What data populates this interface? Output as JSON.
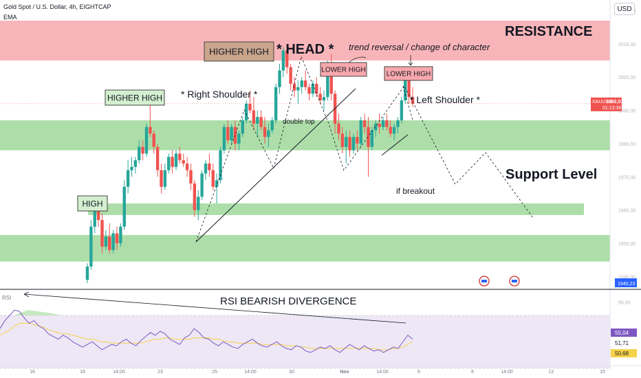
{
  "header": {
    "symbol_line": "Gold Spot / U.S. Dollar, 4h, EIGHTCAP",
    "indicator": "EMA",
    "currency_button": "USD"
  },
  "colors": {
    "bull": "#26a69a",
    "bear": "#ef5350",
    "resistance_zone": "#f7a8ad",
    "support_zone": "#9fd89a",
    "rsi_line": "#7e57c2",
    "rsi_ma": "#f5d34a",
    "rsi_band": "#ede7f6"
  },
  "chart_data": [
    {
      "type": "candlestick",
      "title": "Gold Spot / U.S. Dollar, 4h, EIGHTCAP",
      "price_axis_ticks": [
        "2020,00",
        "2010,00",
        "2000,00",
        "1990,00",
        "1980,00",
        "1970,00",
        "1960,00",
        "1950,00",
        "1940,00"
      ],
      "time_axis_ticks": [
        "16",
        "18",
        "14:00",
        "23",
        "25",
        "14:00",
        "30",
        "Nov",
        "14:00",
        "6",
        "8",
        "14:00",
        "13",
        "15"
      ],
      "ylim": [
        1938,
        2024
      ],
      "current_price": {
        "symbol": "XAUUSD",
        "value": "1992,01",
        "countdown": "01:13:36"
      },
      "price_marker_bottom": "1940,23",
      "zones": [
        {
          "name": "resistance",
          "from": 2005,
          "to": 2017
        },
        {
          "name": "support-1",
          "from": 1978,
          "to": 1987
        },
        {
          "name": "support-2",
          "from": 1958.5,
          "to": 1962
        },
        {
          "name": "support-3",
          "from": 1944.5,
          "to": 1952.5
        }
      ],
      "annotations": {
        "resistance": "RESISTANCE",
        "support_level": "Support Level",
        "head": "* HEAD *",
        "higher_high_top": "HIGHER HIGH",
        "higher_high_left": "HIGHER HIGH",
        "high": "HIGH",
        "lower_high_1": "LOWER HIGH",
        "lower_high_2": "LOWER HIGH",
        "right_shoulder": "* Right Shoulder *",
        "left_shoulder": "* Left Shoulder *",
        "trend_reversal": "trend reversal / change of character",
        "double_top": "double top",
        "if_breakout": "if breakout"
      },
      "candles": [
        [
          1939.0,
          1944.0,
          1938.0,
          1943.0
        ],
        [
          1943.0,
          1957.0,
          1942.0,
          1955.0
        ],
        [
          1955.0,
          1963.0,
          1953.0,
          1961.0
        ],
        [
          1961.0,
          1962.0,
          1955.0,
          1957.0
        ],
        [
          1957.0,
          1959.0,
          1947.0,
          1949.0
        ],
        [
          1949.0,
          1954.0,
          1948.0,
          1952.0
        ],
        [
          1952.0,
          1956.0,
          1947.0,
          1948.0
        ],
        [
          1948.0,
          1954.0,
          1947.0,
          1953.0
        ],
        [
          1953.0,
          1955.0,
          1948.0,
          1950.0
        ],
        [
          1950.0,
          1956.0,
          1949.0,
          1955.0
        ],
        [
          1955.0,
          1969.0,
          1954.0,
          1967.0
        ],
        [
          1967.0,
          1975.0,
          1965.0,
          1972.0
        ],
        [
          1972.0,
          1976.0,
          1970.0,
          1973.0
        ],
        [
          1973.0,
          1976.0,
          1971.0,
          1975.0
        ],
        [
          1975.0,
          1981.0,
          1974.0,
          1979.0
        ],
        [
          1979.0,
          1981.0,
          1975.0,
          1977.0
        ],
        [
          1977.0,
          1986.0,
          1976.0,
          1985.0
        ],
        [
          1985.0,
          1993.0,
          1982.0,
          1983.0
        ],
        [
          1983.0,
          1984.0,
          1977.0,
          1979.0
        ],
        [
          1979.0,
          1980.0,
          1970.0,
          1972.0
        ],
        [
          1972.0,
          1974.0,
          1965.0,
          1967.0
        ],
        [
          1967.0,
          1974.0,
          1966.0,
          1972.0
        ],
        [
          1972.0,
          1977.0,
          1971.0,
          1976.0
        ],
        [
          1976.0,
          1978.0,
          1971.0,
          1973.0
        ],
        [
          1973.0,
          1978.0,
          1972.0,
          1977.0
        ],
        [
          1977.0,
          1979.0,
          1974.0,
          1975.0
        ],
        [
          1975.0,
          1977.0,
          1973.0,
          1974.0
        ],
        [
          1974.0,
          1976.0,
          1970.0,
          1972.0
        ],
        [
          1972.0,
          1974.0,
          1966.0,
          1968.0
        ],
        [
          1968.0,
          1969.0,
          1958.0,
          1960.0
        ],
        [
          1960.0,
          1966.0,
          1957.0,
          1964.0
        ],
        [
          1964.0,
          1972.0,
          1963.0,
          1971.0
        ],
        [
          1971.0,
          1975.0,
          1969.0,
          1974.0
        ],
        [
          1974.0,
          1977.0,
          1970.0,
          1972.0
        ],
        [
          1972.0,
          1974.0,
          1966.0,
          1967.0
        ],
        [
          1967.0,
          1971.0,
          1962.0,
          1969.0
        ],
        [
          1969.0,
          1979.0,
          1968.0,
          1978.0
        ],
        [
          1978.0,
          1986.0,
          1977.0,
          1985.0
        ],
        [
          1985.0,
          1987.0,
          1980.0,
          1981.0
        ],
        [
          1981.0,
          1986.0,
          1980.0,
          1985.0
        ],
        [
          1985.0,
          1987.0,
          1978.0,
          1980.0
        ],
        [
          1980.0,
          1984.0,
          1978.0,
          1983.0
        ],
        [
          1983.0,
          1988.0,
          1982.0,
          1987.0
        ],
        [
          1987.0,
          1993.0,
          1986.0,
          1992.0
        ],
        [
          1992.0,
          1996.0,
          1989.0,
          1990.0
        ],
        [
          1990.0,
          1994.0,
          1984.0,
          1986.0
        ],
        [
          1986.0,
          1990.0,
          1982.0,
          1988.0
        ],
        [
          1988.0,
          1990.0,
          1984.0,
          1985.0
        ],
        [
          1985.0,
          1988.0,
          1980.0,
          1982.0
        ],
        [
          1982.0,
          1986.0,
          1979.0,
          1984.0
        ],
        [
          1984.0,
          1988.0,
          1983.0,
          1987.0
        ],
        [
          1987.0,
          1998.0,
          1986.0,
          1997.0
        ],
        [
          1997.0,
          2004.0,
          1995.0,
          2002.0
        ],
        [
          2002.0,
          2009.0,
          2000.0,
          2008.0
        ],
        [
          2008.0,
          2010.0,
          2001.0,
          2003.0
        ],
        [
          2003.0,
          2004.0,
          1996.0,
          1998.0
        ],
        [
          1998.0,
          2000.0,
          1994.0,
          1996.0
        ],
        [
          1996.0,
          1999.0,
          1992.0,
          1997.0
        ],
        [
          1997.0,
          2000.0,
          1995.0,
          1999.0
        ],
        [
          1999.0,
          2002.0,
          1996.0,
          1997.0
        ],
        [
          1997.0,
          1998.0,
          1993.0,
          1995.0
        ],
        [
          1995.0,
          1999.0,
          1994.0,
          1998.0
        ],
        [
          1998.0,
          2000.0,
          1994.0,
          1995.0
        ],
        [
          1995.0,
          1997.0,
          1992.0,
          1993.0
        ],
        [
          1993.0,
          1996.0,
          1990.0,
          1994.0
        ],
        [
          1994.0,
          2005.0,
          1993.0,
          2004.0
        ],
        [
          2004.0,
          2007.0,
          1993.0,
          1995.0
        ],
        [
          1995.0,
          1996.0,
          1983.0,
          1986.0
        ],
        [
          1986.0,
          1989.0,
          1981.0,
          1983.0
        ],
        [
          1983.0,
          1985.0,
          1977.0,
          1979.0
        ],
        [
          1979.0,
          1984.0,
          1974.0,
          1982.0
        ],
        [
          1982.0,
          1984.0,
          1976.0,
          1978.0
        ],
        [
          1978.0,
          1983.0,
          1977.0,
          1982.0
        ],
        [
          1982.0,
          1984.0,
          1978.0,
          1980.0
        ],
        [
          1980.0,
          1988.0,
          1979.0,
          1987.0
        ],
        [
          1987.0,
          1989.0,
          1983.0,
          1985.0
        ],
        [
          1985.0,
          1988.0,
          1970.0,
          1979.0
        ],
        [
          1979.0,
          1985.0,
          1978.0,
          1984.0
        ],
        [
          1984.0,
          1987.0,
          1982.0,
          1986.0
        ],
        [
          1986.0,
          1989.0,
          1983.0,
          1985.0
        ],
        [
          1985.0,
          1988.0,
          1984.0,
          1987.0
        ],
        [
          1987.0,
          1989.0,
          1984.0,
          1985.0
        ],
        [
          1985.0,
          1987.0,
          1982.0,
          1983.0
        ],
        [
          1983.0,
          1986.0,
          1981.0,
          1985.0
        ],
        [
          1985.0,
          1988.0,
          1983.0,
          1987.0
        ],
        [
          1987.0,
          1994.0,
          1986.0,
          1993.0
        ],
        [
          1993.0,
          2002.0,
          1992.0,
          2001.0
        ],
        [
          1999.0,
          2000.0,
          1992.0,
          1994.0
        ],
        [
          1994.0,
          1997.0,
          1991.0,
          1992.0
        ]
      ]
    },
    {
      "type": "line",
      "title": "RSI",
      "annotation": "RSI BEARISH DIVERGENCE",
      "axis_ticks": [
        "80,00",
        "55,04",
        "51,71",
        "50,68"
      ],
      "ylim": [
        32,
        85
      ],
      "band": [
        30,
        70
      ],
      "labels": {
        "rsi": "55,04",
        "mid": "51,71",
        "ma": "50,68"
      },
      "series": [
        {
          "values": [
            60,
            66,
            70,
            74,
            73,
            68,
            64,
            66,
            62,
            60,
            56,
            54,
            52,
            55,
            53,
            50,
            48,
            46,
            48,
            50,
            47,
            44,
            46,
            48,
            47,
            50,
            52,
            49,
            47,
            51,
            54,
            57,
            55,
            58,
            56,
            52,
            50,
            48,
            53,
            55,
            60,
            57,
            53,
            52,
            49,
            47,
            50,
            48,
            46,
            45,
            48,
            50,
            52,
            49,
            47,
            46,
            48,
            50,
            47,
            45,
            44,
            47,
            46,
            43,
            42,
            44,
            46,
            45,
            47,
            44,
            42,
            45,
            48,
            46,
            44,
            47,
            45,
            43,
            44,
            42,
            44,
            46,
            45,
            50,
            55,
            52
          ]
        },
        {
          "values": [
            55,
            57,
            59,
            62,
            64,
            64,
            64,
            63,
            62,
            61,
            59,
            58,
            57,
            56,
            56,
            55,
            54,
            53,
            52,
            52,
            51,
            50,
            50,
            49,
            49,
            49,
            49,
            49,
            49,
            49,
            50,
            51,
            52,
            52,
            53,
            53,
            52,
            52,
            52,
            52,
            53,
            53,
            53,
            53,
            52,
            52,
            51,
            50,
            50,
            49,
            49,
            49,
            49,
            49,
            48,
            48,
            48,
            48,
            48,
            47,
            47,
            47,
            46,
            46,
            45,
            45,
            45,
            45,
            45,
            45,
            45,
            45,
            45,
            45,
            45,
            45,
            45,
            45,
            44,
            44,
            44,
            45,
            45,
            46,
            48,
            50
          ]
        }
      ]
    }
  ]
}
